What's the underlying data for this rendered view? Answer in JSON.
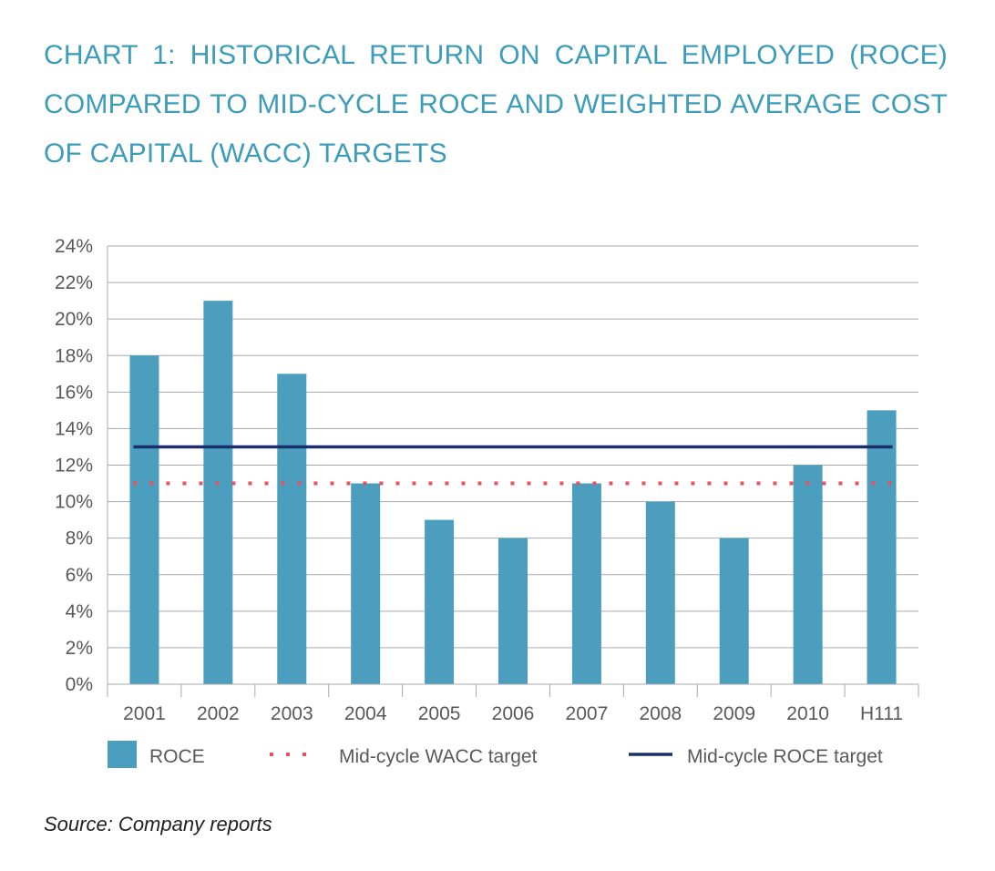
{
  "chart_data": {
    "type": "bar",
    "title": "CHART 1: HISTORICAL RETURN ON CAPITAL EMPLOYED (ROCE) COMPARED TO MID-CYCLE ROCE AND WEIGHTED AVERAGE COST OF CAPITAL (WACC) TARGETS",
    "categories": [
      "2001",
      "2002",
      "2003",
      "2004",
      "2005",
      "2006",
      "2007",
      "2008",
      "2009",
      "2010",
      "H111"
    ],
    "series": [
      {
        "name": "ROCE",
        "kind": "bar",
        "color": "#4b9ebe",
        "values": [
          18,
          21,
          17,
          11,
          9,
          8,
          11,
          10,
          8,
          12,
          15
        ]
      },
      {
        "name": "Mid-cycle WACC target",
        "kind": "line",
        "style": "dotted",
        "color": "#e8515e",
        "values": [
          11,
          11,
          11,
          11,
          11,
          11,
          11,
          11,
          11,
          11,
          11
        ]
      },
      {
        "name": "Mid-cycle ROCE target",
        "kind": "line",
        "style": "solid",
        "color": "#1b2f6b",
        "values": [
          13,
          13,
          13,
          13,
          13,
          13,
          13,
          13,
          13,
          13,
          13
        ]
      }
    ],
    "ylim": [
      0,
      24
    ],
    "yticks": [
      0,
      2,
      4,
      6,
      8,
      10,
      12,
      14,
      16,
      18,
      20,
      22,
      24
    ],
    "ytick_labels": [
      "0%",
      "2%",
      "4%",
      "6%",
      "8%",
      "10%",
      "12%",
      "14%",
      "16%",
      "18%",
      "20%",
      "22%",
      "24%"
    ],
    "grid": true,
    "legend": "bottom",
    "xlabel": "",
    "ylabel": ""
  },
  "source": "Source: Company reports"
}
